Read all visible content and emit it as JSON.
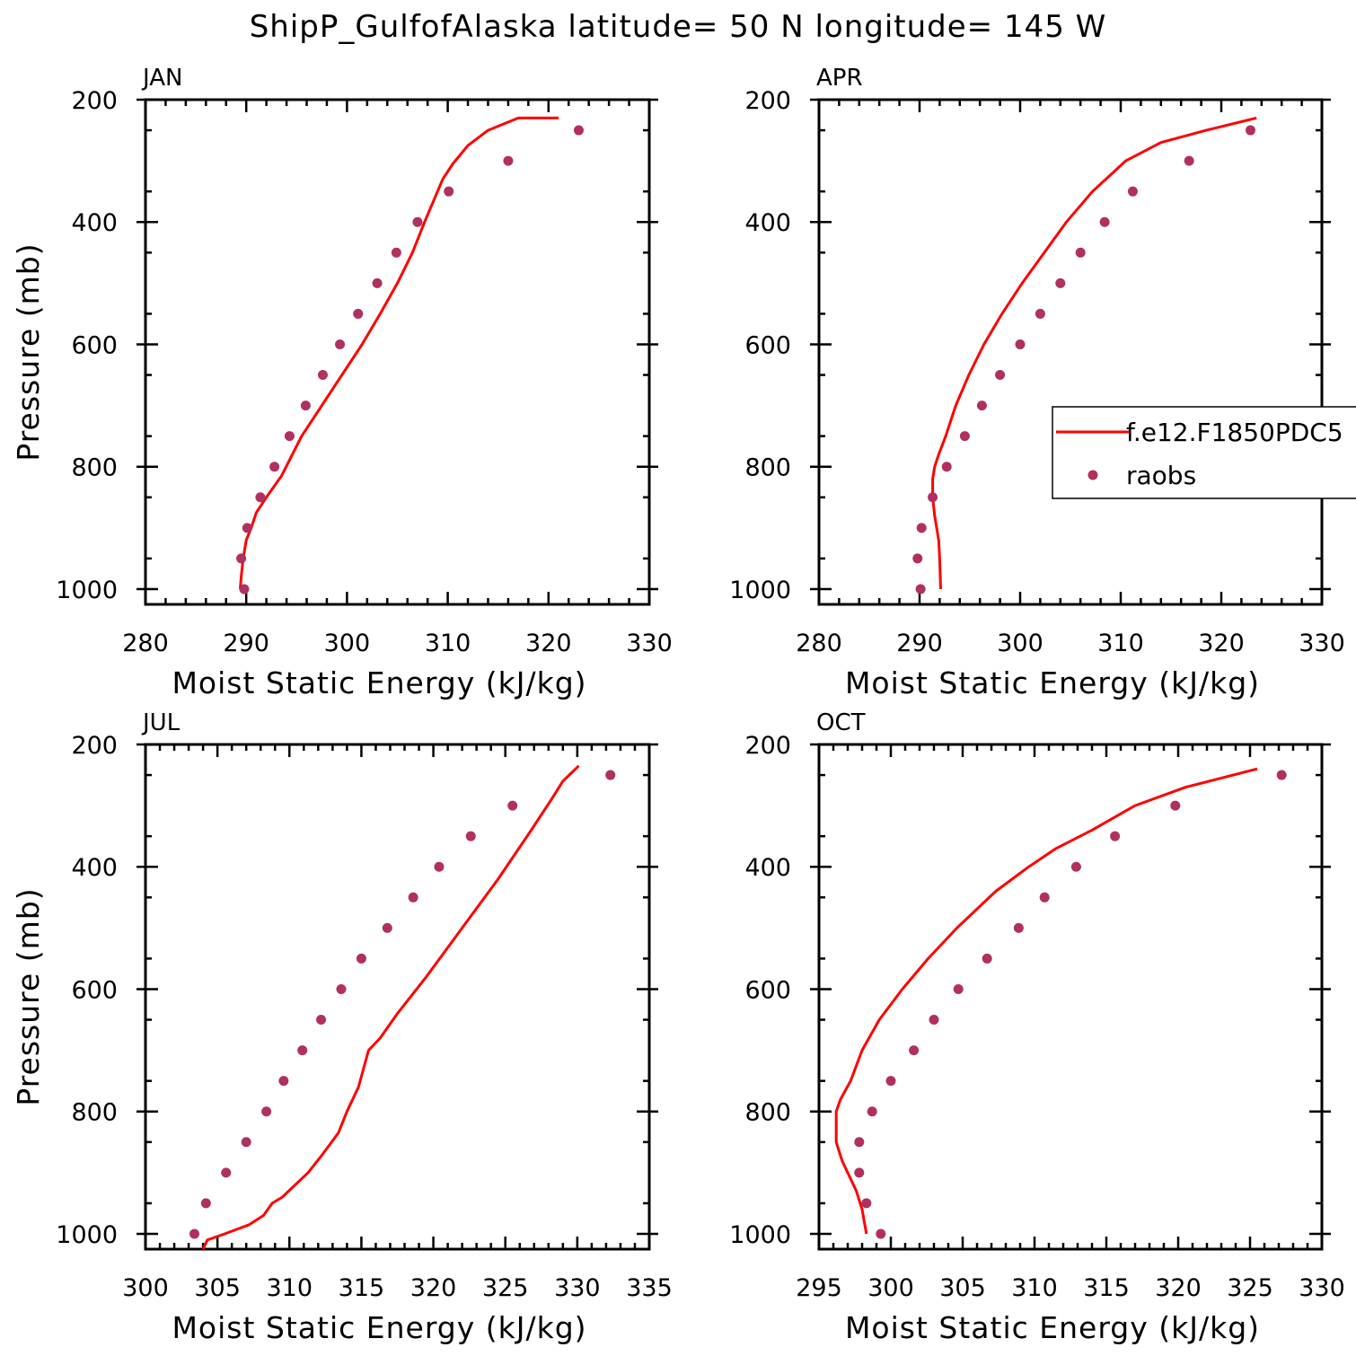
{
  "title": "ShipP_GulfofAlaska  latitude= 50 N longitude= 145 W",
  "colors": {
    "model": "#ff0000",
    "obs": "#b03060"
  },
  "legend": {
    "model_label": "f.e12.F1850PDC5",
    "obs_label": "raobs"
  },
  "chart_data": [
    {
      "type": "line",
      "panel": "JAN",
      "xlabel": "Moist Static Energy (kJ/kg)",
      "ylabel": "Pressure (mb)",
      "xlim": [
        280,
        330
      ],
      "ylim": [
        1025,
        200
      ],
      "xticks": [
        280,
        290,
        300,
        310,
        320,
        330
      ],
      "yticks": [
        200,
        400,
        600,
        800,
        1000
      ],
      "series": [
        {
          "name": "f.e12.F1850PDC5",
          "style": "line",
          "x": [
            289.4,
            289.5,
            289.7,
            290.0,
            290.5,
            291.0,
            292.0,
            293.5,
            295.5,
            297.5,
            299.5,
            301.5,
            303.3,
            305.0,
            306.5,
            307.7,
            308.6,
            309.5,
            310.5,
            312.0,
            314.0,
            317.0,
            321.0
          ],
          "y": [
            1000,
            980,
            950,
            920,
            900,
            875,
            850,
            815,
            750,
            700,
            650,
            600,
            550,
            500,
            450,
            400,
            365,
            330,
            305,
            275,
            250,
            230,
            230
          ]
        },
        {
          "name": "raobs",
          "style": "scatter",
          "x": [
            289.8,
            289.5,
            290.1,
            291.4,
            292.8,
            294.3,
            295.9,
            297.6,
            299.3,
            301.1,
            303.0,
            304.9,
            307.0,
            310.1,
            316.0,
            323.0
          ],
          "y": [
            1000,
            950,
            900,
            850,
            800,
            750,
            700,
            650,
            600,
            550,
            500,
            450,
            400,
            350,
            300,
            250
          ]
        }
      ]
    },
    {
      "type": "line",
      "panel": "APR",
      "xlabel": "Moist Static Energy (kJ/kg)",
      "ylabel": "",
      "xlim": [
        280,
        330
      ],
      "ylim": [
        1025,
        200
      ],
      "xticks": [
        280,
        290,
        300,
        310,
        320,
        330
      ],
      "yticks": [
        200,
        400,
        600,
        800,
        1000
      ],
      "series": [
        {
          "name": "f.e12.F1850PDC5",
          "style": "line",
          "x": [
            292.1,
            292.0,
            291.9,
            291.5,
            291.3,
            291.3,
            291.5,
            291.9,
            292.6,
            293.6,
            294.9,
            296.4,
            298.2,
            300.2,
            302.4,
            304.6,
            307.2,
            310.5,
            314.0,
            318.5,
            323.5
          ],
          "y": [
            1000,
            950,
            920,
            880,
            850,
            820,
            800,
            780,
            750,
            700,
            650,
            600,
            550,
            500,
            450,
            400,
            350,
            300,
            270,
            250,
            230
          ]
        },
        {
          "name": "raobs",
          "style": "scatter",
          "x": [
            290.1,
            289.8,
            290.2,
            291.3,
            292.7,
            294.5,
            296.2,
            298.0,
            300.0,
            302.0,
            304.0,
            306.0,
            308.4,
            311.2,
            316.8,
            322.9
          ],
          "y": [
            1000,
            950,
            900,
            850,
            800,
            750,
            700,
            650,
            600,
            550,
            500,
            450,
            400,
            350,
            300,
            250
          ]
        }
      ]
    },
    {
      "type": "line",
      "panel": "JUL",
      "xlabel": "Moist Static Energy (kJ/kg)",
      "ylabel": "Pressure (mb)",
      "xlim": [
        300,
        335
      ],
      "ylim": [
        1025,
        200
      ],
      "xticks": [
        300,
        305,
        310,
        315,
        320,
        325,
        330,
        335
      ],
      "yticks": [
        200,
        400,
        600,
        800,
        1000
      ],
      "series": [
        {
          "name": "f.e12.F1850PDC5",
          "style": "line",
          "x": [
            304.0,
            304.3,
            305.5,
            307.2,
            308.2,
            308.8,
            309.5,
            311.3,
            312.3,
            313.4,
            314.0,
            314.8,
            315.5,
            316.3,
            317.5,
            319.5,
            322.0,
            324.5,
            326.8,
            328.2,
            329.0,
            330.1
          ],
          "y": [
            1025,
            1010,
            1000,
            985,
            970,
            950,
            940,
            900,
            870,
            835,
            800,
            760,
            700,
            680,
            640,
            580,
            500,
            420,
            340,
            290,
            260,
            235
          ]
        },
        {
          "name": "raobs",
          "style": "scatter",
          "x": [
            303.4,
            304.2,
            305.6,
            307.0,
            308.4,
            309.6,
            310.9,
            312.2,
            313.6,
            315.0,
            316.8,
            318.6,
            320.4,
            322.6,
            325.5,
            332.3
          ],
          "y": [
            1000,
            950,
            900,
            850,
            800,
            750,
            700,
            650,
            600,
            550,
            500,
            450,
            400,
            350,
            300,
            250
          ]
        }
      ]
    },
    {
      "type": "line",
      "panel": "OCT",
      "xlabel": "Moist Static Energy (kJ/kg)",
      "ylabel": "",
      "xlim": [
        295,
        330
      ],
      "ylim": [
        1025,
        200
      ],
      "xticks": [
        295,
        300,
        305,
        310,
        315,
        320,
        325,
        330
      ],
      "yticks": [
        200,
        400,
        600,
        800,
        1000
      ],
      "series": [
        {
          "name": "f.e12.F1850PDC5",
          "style": "line",
          "x": [
            298.3,
            298.0,
            297.6,
            297.2,
            296.6,
            296.2,
            296.2,
            296.5,
            297.2,
            298.0,
            299.2,
            300.8,
            302.6,
            304.6,
            307.3,
            309.6,
            311.5,
            314.0,
            317.0,
            320.5,
            325.5
          ],
          "y": [
            1000,
            960,
            930,
            910,
            880,
            850,
            800,
            780,
            750,
            700,
            650,
            600,
            550,
            500,
            440,
            400,
            370,
            340,
            300,
            270,
            240
          ]
        },
        {
          "name": "raobs",
          "style": "scatter",
          "x": [
            299.3,
            298.3,
            297.8,
            297.8,
            298.7,
            300.0,
            301.6,
            303.0,
            304.7,
            306.7,
            308.9,
            310.7,
            312.9,
            315.6,
            319.8,
            327.2
          ],
          "y": [
            1000,
            950,
            900,
            850,
            800,
            750,
            700,
            650,
            600,
            550,
            500,
            450,
            400,
            350,
            300,
            250
          ]
        }
      ]
    }
  ]
}
